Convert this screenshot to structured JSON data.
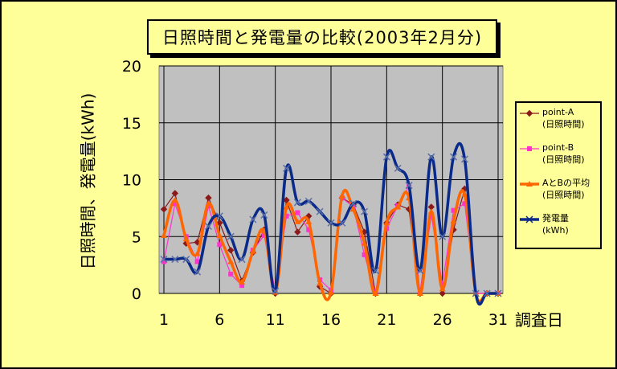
{
  "chart_data": {
    "type": "line",
    "title": "日照時間と発電量の比較(2003年2月分)",
    "ylabel": "日照時間、発電量(kWh)",
    "xlabel": "調査日",
    "ylim": [
      0,
      20
    ],
    "xlim": [
      1,
      31
    ],
    "x_ticks": [
      "1",
      "6",
      "11",
      "16",
      "21",
      "26",
      "31"
    ],
    "y_ticks": [
      "0",
      "5",
      "10",
      "15",
      "20"
    ],
    "grid": true,
    "legend_position": "right",
    "series": [
      {
        "name": "point-A\n(日照時間)",
        "color": "#8b1a1a",
        "marker": "diamond",
        "values": [
          7.4,
          8.8,
          4.4,
          4.5,
          8.4,
          6.2,
          3.8,
          1.1,
          3.6,
          5.6,
          0,
          8.2,
          5.4,
          6.8,
          0.6,
          0,
          8.4,
          7.8,
          5.4,
          0,
          6.2,
          7.8,
          7.4,
          0,
          7.6,
          0,
          5.6,
          9.2,
          0,
          0,
          0
        ]
      },
      {
        "name": "point-B\n(日照時間)",
        "color": "#ff33cc",
        "marker": "square",
        "values": [
          2.8,
          7.9,
          5.0,
          2.8,
          7.7,
          4.3,
          1.7,
          0.7,
          3.8,
          5.1,
          0.2,
          6.8,
          7.1,
          5.6,
          1.2,
          0.3,
          8.4,
          7.6,
          3.4,
          0,
          5.7,
          7.7,
          9.4,
          0,
          6.9,
          0.8,
          7.3,
          7.9,
          0,
          0,
          0
        ]
      },
      {
        "name": "AとBの平均\n(日照時間)",
        "color": "#ff6600",
        "marker": "triangle",
        "values": [
          5.1,
          8.2,
          4.8,
          3.5,
          7.9,
          5.1,
          2.8,
          1.0,
          3.7,
          5.5,
          0.1,
          7.6,
          6.3,
          6.3,
          0.9,
          0.1,
          8.6,
          7.4,
          4.4,
          0,
          6.2,
          7.6,
          8.4,
          0,
          7.2,
          0.4,
          6.4,
          8.7,
          0,
          0,
          0
        ]
      },
      {
        "name": "発電量\n(kWh)",
        "color": "#0a2a8a",
        "marker": "x",
        "values": [
          3.0,
          3.0,
          3.0,
          1.9,
          5.9,
          6.8,
          5.0,
          3.0,
          6.5,
          6.9,
          0.2,
          11.0,
          8.0,
          8.1,
          7.2,
          6.2,
          6.2,
          7.9,
          7.2,
          2.0,
          12.0,
          11.0,
          9.5,
          2.0,
          12.0,
          5.0,
          12.0,
          11.8,
          0,
          0,
          0
        ]
      }
    ]
  },
  "xunit_label": "調査日"
}
